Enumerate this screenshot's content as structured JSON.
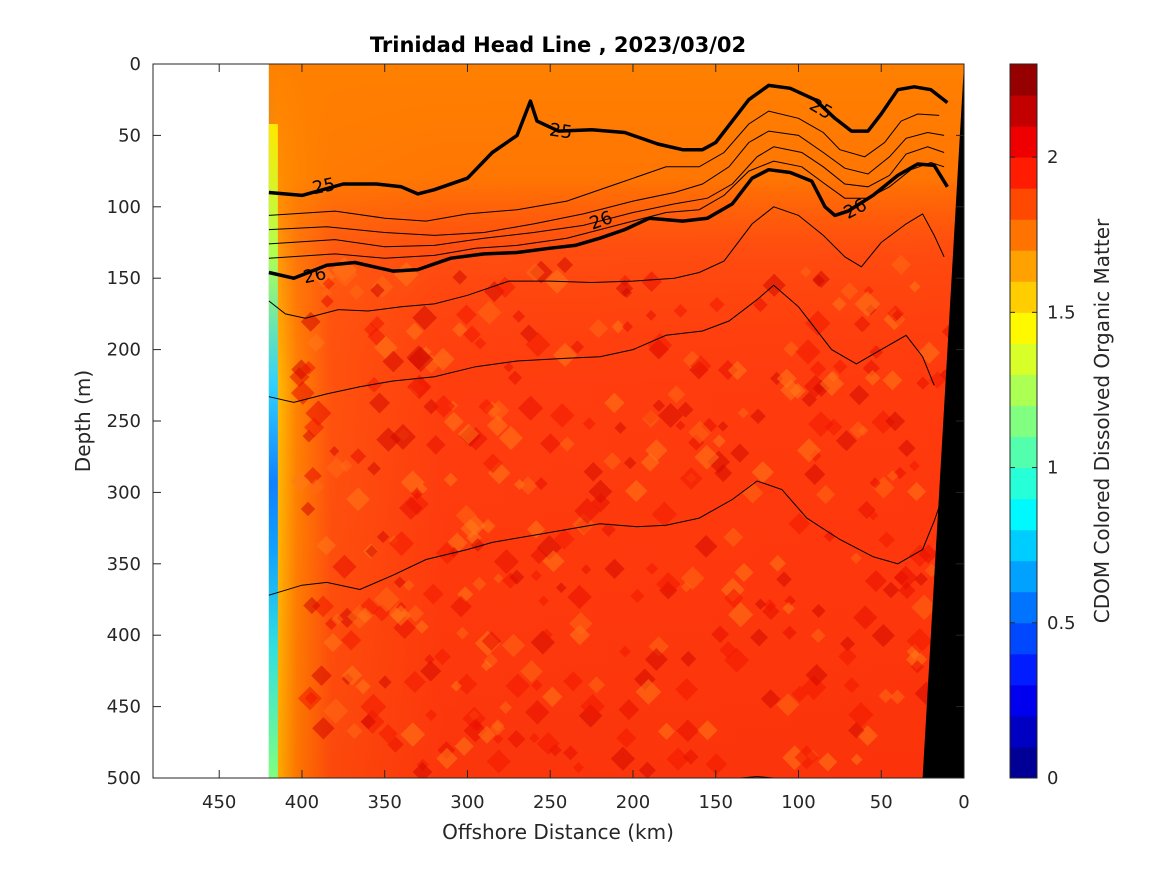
{
  "chart_data": {
    "type": "heatmap",
    "title": "Trinidad Head Line , 2023/03/02",
    "xlabel": "Offshore Distance (km)",
    "ylabel": "Depth (m)",
    "colorbar_label": "CDOM Colored Dissolved Organic Matter",
    "xlim": [
      490,
      0
    ],
    "ylim": [
      500,
      0
    ],
    "x_reversed": true,
    "y_reversed": true,
    "x_ticks": [
      450,
      400,
      350,
      300,
      250,
      200,
      150,
      100,
      50,
      0
    ],
    "y_ticks": [
      0,
      50,
      100,
      150,
      200,
      250,
      300,
      350,
      400,
      450,
      500
    ],
    "colorbar_range": [
      0,
      2.3
    ],
    "colorbar_ticks": [
      0,
      0.5,
      1,
      1.5,
      2
    ],
    "colormap": "jet",
    "data_extent_km": [
      0,
      420
    ],
    "contour_labels": [
      "25",
      "25",
      "25",
      "26",
      "26",
      "26"
    ],
    "bold_contours": [
      {
        "level": 25,
        "points": [
          [
            420,
            90
          ],
          [
            400,
            92
          ],
          [
            375,
            84
          ],
          [
            355,
            84
          ],
          [
            340,
            86
          ],
          [
            330,
            91
          ],
          [
            320,
            88
          ],
          [
            300,
            80
          ],
          [
            285,
            62
          ],
          [
            270,
            50
          ],
          [
            262,
            26
          ],
          [
            258,
            40
          ],
          [
            245,
            47
          ],
          [
            225,
            46
          ],
          [
            205,
            48
          ],
          [
            185,
            56
          ],
          [
            170,
            60
          ],
          [
            158,
            60
          ],
          [
            150,
            55
          ],
          [
            140,
            40
          ],
          [
            130,
            25
          ],
          [
            118,
            15
          ],
          [
            105,
            17
          ],
          [
            90,
            25
          ],
          [
            78,
            38
          ],
          [
            68,
            47
          ],
          [
            58,
            47
          ],
          [
            50,
            35
          ],
          [
            40,
            18
          ],
          [
            30,
            16
          ],
          [
            20,
            18
          ],
          [
            10,
            27
          ]
        ]
      },
      {
        "level": 26,
        "points": [
          [
            420,
            146
          ],
          [
            405,
            150
          ],
          [
            385,
            141
          ],
          [
            368,
            139
          ],
          [
            345,
            145
          ],
          [
            330,
            144
          ],
          [
            310,
            136
          ],
          [
            290,
            133
          ],
          [
            270,
            132
          ],
          [
            250,
            129
          ],
          [
            235,
            127
          ],
          [
            220,
            122
          ],
          [
            205,
            116
          ],
          [
            190,
            108
          ],
          [
            170,
            110
          ],
          [
            155,
            108
          ],
          [
            140,
            98
          ],
          [
            128,
            80
          ],
          [
            118,
            74
          ],
          [
            105,
            76
          ],
          [
            92,
            82
          ],
          [
            84,
            100
          ],
          [
            78,
            106
          ],
          [
            70,
            103
          ],
          [
            55,
            92
          ],
          [
            40,
            78
          ],
          [
            28,
            70
          ],
          [
            18,
            71
          ],
          [
            10,
            86
          ]
        ]
      }
    ],
    "thin_contours": [
      [
        [
          420,
          106
        ],
        [
          380,
          103
        ],
        [
          350,
          108
        ],
        [
          325,
          110
        ],
        [
          300,
          105
        ],
        [
          270,
          102
        ],
        [
          240,
          96
        ],
        [
          210,
          84
        ],
        [
          180,
          72
        ],
        [
          160,
          72
        ],
        [
          145,
          62
        ],
        [
          130,
          42
        ],
        [
          118,
          33
        ],
        [
          100,
          38
        ],
        [
          85,
          48
        ],
        [
          75,
          60
        ],
        [
          60,
          65
        ],
        [
          48,
          55
        ],
        [
          38,
          40
        ],
        [
          28,
          35
        ],
        [
          15,
          36
        ]
      ],
      [
        [
          420,
          116
        ],
        [
          385,
          114
        ],
        [
          350,
          118
        ],
        [
          320,
          120
        ],
        [
          290,
          118
        ],
        [
          260,
          112
        ],
        [
          230,
          105
        ],
        [
          200,
          96
        ],
        [
          175,
          90
        ],
        [
          158,
          84
        ],
        [
          142,
          72
        ],
        [
          130,
          55
        ],
        [
          118,
          47
        ],
        [
          100,
          50
        ],
        [
          85,
          62
        ],
        [
          72,
          73
        ],
        [
          58,
          77
        ],
        [
          45,
          65
        ],
        [
          35,
          52
        ],
        [
          22,
          48
        ],
        [
          12,
          50
        ]
      ],
      [
        [
          420,
          126
        ],
        [
          380,
          123
        ],
        [
          350,
          128
        ],
        [
          320,
          127
        ],
        [
          290,
          122
        ],
        [
          260,
          118
        ],
        [
          230,
          113
        ],
        [
          200,
          104
        ],
        [
          175,
          98
        ],
        [
          155,
          94
        ],
        [
          140,
          84
        ],
        [
          125,
          65
        ],
        [
          115,
          58
        ],
        [
          98,
          62
        ],
        [
          85,
          72
        ],
        [
          72,
          84
        ],
        [
          58,
          86
        ],
        [
          45,
          78
        ],
        [
          35,
          63
        ],
        [
          22,
          58
        ],
        [
          12,
          62
        ]
      ],
      [
        [
          420,
          136
        ],
        [
          380,
          133
        ],
        [
          350,
          136
        ],
        [
          320,
          134
        ],
        [
          295,
          129
        ],
        [
          270,
          127
        ],
        [
          240,
          122
        ],
        [
          210,
          113
        ],
        [
          180,
          104
        ],
        [
          160,
          102
        ],
        [
          145,
          92
        ],
        [
          130,
          75
        ],
        [
          115,
          68
        ],
        [
          98,
          72
        ],
        [
          84,
          84
        ],
        [
          72,
          94
        ],
        [
          58,
          94
        ],
        [
          45,
          86
        ],
        [
          32,
          74
        ],
        [
          20,
          69
        ],
        [
          12,
          72
        ]
      ],
      [
        [
          420,
          166
        ],
        [
          410,
          175
        ],
        [
          398,
          178
        ],
        [
          378,
          172
        ],
        [
          360,
          173
        ],
        [
          340,
          170
        ],
        [
          320,
          168
        ],
        [
          300,
          162
        ],
        [
          275,
          152
        ],
        [
          250,
          152
        ],
        [
          225,
          153
        ],
        [
          200,
          152
        ],
        [
          175,
          150
        ],
        [
          160,
          146
        ],
        [
          145,
          138
        ],
        [
          128,
          112
        ],
        [
          115,
          100
        ],
        [
          100,
          106
        ],
        [
          85,
          120
        ],
        [
          72,
          135
        ],
        [
          62,
          142
        ],
        [
          50,
          125
        ],
        [
          35,
          112
        ],
        [
          25,
          105
        ],
        [
          18,
          120
        ],
        [
          12,
          135
        ]
      ],
      [
        [
          420,
          233
        ],
        [
          405,
          237
        ],
        [
          385,
          231
        ],
        [
          365,
          226
        ],
        [
          345,
          222
        ],
        [
          320,
          219
        ],
        [
          295,
          212
        ],
        [
          270,
          208
        ],
        [
          240,
          206
        ],
        [
          220,
          205
        ],
        [
          200,
          200
        ],
        [
          180,
          190
        ],
        [
          158,
          187
        ],
        [
          142,
          180
        ],
        [
          125,
          165
        ],
        [
          115,
          155
        ],
        [
          100,
          170
        ],
        [
          80,
          200
        ],
        [
          65,
          210
        ],
        [
          50,
          200
        ],
        [
          35,
          190
        ],
        [
          25,
          205
        ],
        [
          18,
          225
        ]
      ],
      [
        [
          420,
          372
        ],
        [
          400,
          365
        ],
        [
          385,
          363
        ],
        [
          365,
          368
        ],
        [
          345,
          358
        ],
        [
          325,
          347
        ],
        [
          300,
          340
        ],
        [
          285,
          335
        ],
        [
          260,
          330
        ],
        [
          240,
          326
        ],
        [
          220,
          322
        ],
        [
          198,
          324
        ],
        [
          180,
          323
        ],
        [
          160,
          318
        ],
        [
          140,
          305
        ],
        [
          125,
          292
        ],
        [
          110,
          298
        ],
        [
          95,
          318
        ],
        [
          75,
          333
        ],
        [
          55,
          345
        ],
        [
          40,
          350
        ],
        [
          25,
          340
        ],
        [
          18,
          320
        ],
        [
          12,
          300
        ]
      ],
      [
        [
          135,
          500
        ],
        [
          125,
          499
        ],
        [
          115,
          500
        ]
      ]
    ],
    "bathymetry_polygon": [
      [
        0,
        0
      ],
      [
        25,
        500
      ],
      [
        0,
        500
      ]
    ]
  }
}
